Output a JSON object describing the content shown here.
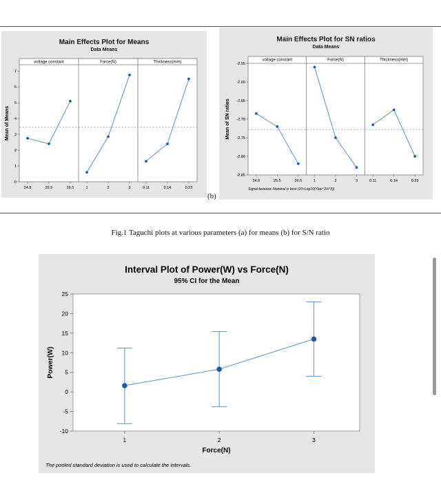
{
  "caption": "Fig.1 Taguchi plots at various parameters (a) for means (b) for S/N ratio",
  "panel_b_label": "(b)",
  "colors": {
    "series": "#1f5aa6",
    "line": "#5a8fc8",
    "ref": "#999999",
    "panel": "#e6e6e6"
  },
  "chart_data": [
    {
      "type": "line",
      "title": "Main Effects Plot for Means",
      "subtitle": "Data Means",
      "ylabel": "Mean of Means",
      "ylim": [
        0,
        7.4
      ],
      "yticks": [
        0,
        1,
        2,
        3,
        4,
        5,
        6,
        7
      ],
      "ytick_labels": [
        "0",
        "1",
        "2",
        "3",
        "4",
        "5",
        "6",
        "7"
      ],
      "reference_line": 3.45,
      "footnote": "",
      "panels": [
        {
          "name": "voltage constant",
          "categories": [
            "24.8",
            "25.5",
            "26.5"
          ],
          "values": [
            2.75,
            2.4,
            5.1
          ]
        },
        {
          "name": "Force(N)",
          "categories": [
            "1",
            "2",
            "3"
          ],
          "values": [
            0.6,
            2.85,
            6.75
          ]
        },
        {
          "name": "Thickness(mm)",
          "categories": [
            "0.11",
            "0.14",
            "0.23"
          ],
          "values": [
            1.3,
            2.4,
            6.5
          ]
        }
      ]
    },
    {
      "type": "line",
      "title": "Main Effects Plot for SN ratios",
      "subtitle": "Data Means",
      "ylabel": "Mean of SN ratios",
      "ylim": [
        -2.85,
        -2.55
      ],
      "yticks": [
        -2.85,
        -2.8,
        -2.75,
        -2.7,
        -2.65,
        -2.6,
        -2.55
      ],
      "ytick_labels": [
        "-2.85",
        "-2.80",
        "-2.75",
        "-2.70",
        "-2.65",
        "-2.60",
        "-2.55"
      ],
      "reference_line": -2.728,
      "footnote": "Signal-to-noise: Nominal is best (10×Log10(Ybar^2/s^2))",
      "panels": [
        {
          "name": "voltage constant",
          "categories": [
            "24.8",
            "25.5",
            "26.5"
          ],
          "values": [
            -2.685,
            -2.72,
            -2.82
          ]
        },
        {
          "name": "Force(N)",
          "categories": [
            "1",
            "2",
            "3"
          ],
          "values": [
            -2.56,
            -2.75,
            -2.83
          ]
        },
        {
          "name": "Thickness(mm)",
          "categories": [
            "0.11",
            "0.14",
            "0.23"
          ],
          "values": [
            -2.715,
            -2.675,
            -2.8
          ]
        }
      ]
    },
    {
      "type": "line",
      "title": "Interval Plot of Power(W) vs Force(N)",
      "subtitle": "95% CI for the Mean",
      "xlabel": "Force(N)",
      "ylabel": "Power(W)",
      "categories": [
        "1",
        "2",
        "3"
      ],
      "means": [
        1.6,
        5.8,
        13.5
      ],
      "lower": [
        -8.1,
        -3.8,
        4.0
      ],
      "upper": [
        11.2,
        15.4,
        23.0
      ],
      "ylim": [
        -10,
        25
      ],
      "yticks": [
        -10,
        -5,
        0,
        5,
        10,
        15,
        20,
        25
      ],
      "ytick_labels": [
        "-10",
        "-5",
        "0",
        "5",
        "10",
        "15",
        "20",
        "25"
      ],
      "footnote": "The pooled standard deviation is used to calculate the intervals."
    }
  ]
}
